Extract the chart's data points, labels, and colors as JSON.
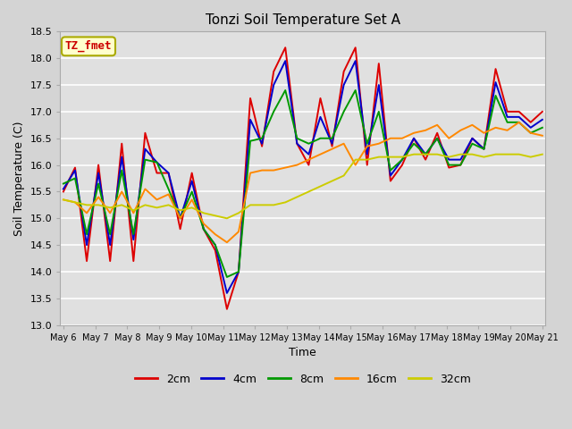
{
  "title": "Tonzi Soil Temperature Set A",
  "xlabel": "Time",
  "ylabel": "Soil Temperature (C)",
  "ylim": [
    13.0,
    18.5
  ],
  "fig_facecolor": "#d4d4d4",
  "ax_facecolor": "#e0e0e0",
  "annotation_text": "TZ_fmet",
  "annotation_color": "#cc0000",
  "annotation_bg": "#ffffcc",
  "annotation_border": "#aaaa00",
  "legend_labels": [
    "2cm",
    "4cm",
    "8cm",
    "16cm",
    "32cm"
  ],
  "legend_colors": [
    "#dd0000",
    "#0000cc",
    "#009900",
    "#ff8800",
    "#cccc00"
  ],
  "line_width": 1.4,
  "x_tick_labels": [
    "May 6",
    "May 7",
    "May 8",
    "May 9",
    "May 10",
    "May 11",
    "May 12",
    "May 13",
    "May 14",
    "May 15",
    "May 16",
    "May 17",
    "May 18",
    "May 19",
    "May 20",
    "May 21"
  ],
  "data_2cm": [
    15.5,
    15.95,
    14.2,
    16.0,
    14.2,
    16.4,
    14.2,
    16.6,
    15.85,
    15.85,
    14.8,
    15.85,
    14.8,
    14.4,
    13.3,
    14.0,
    17.25,
    16.35,
    17.75,
    18.2,
    16.4,
    16.0,
    17.25,
    16.35,
    17.75,
    18.2,
    16.0,
    17.9,
    15.7,
    16.0,
    16.5,
    16.1,
    16.6,
    15.95,
    16.0,
    16.5,
    16.3,
    17.8,
    17.0,
    17.0,
    16.8,
    17.0
  ],
  "data_4cm": [
    15.55,
    15.9,
    14.5,
    15.85,
    14.5,
    16.15,
    14.6,
    16.3,
    16.05,
    15.85,
    15.0,
    15.7,
    14.8,
    14.5,
    13.6,
    14.0,
    16.85,
    16.4,
    17.5,
    17.95,
    16.4,
    16.2,
    16.9,
    16.4,
    17.5,
    17.95,
    16.2,
    17.5,
    15.8,
    16.1,
    16.5,
    16.2,
    16.5,
    16.1,
    16.1,
    16.5,
    16.3,
    17.55,
    16.9,
    16.9,
    16.7,
    16.85
  ],
  "data_8cm": [
    15.65,
    15.75,
    14.7,
    15.65,
    14.7,
    15.9,
    14.7,
    16.1,
    16.05,
    15.55,
    15.0,
    15.5,
    14.8,
    14.5,
    13.9,
    14.0,
    16.45,
    16.5,
    17.0,
    17.4,
    16.5,
    16.4,
    16.5,
    16.5,
    17.0,
    17.4,
    16.4,
    17.0,
    15.9,
    16.1,
    16.4,
    16.2,
    16.5,
    16.0,
    16.0,
    16.4,
    16.3,
    17.3,
    16.8,
    16.8,
    16.6,
    16.7
  ],
  "data_16cm": [
    15.35,
    15.3,
    15.1,
    15.4,
    15.1,
    15.5,
    15.1,
    15.55,
    15.35,
    15.45,
    15.0,
    15.35,
    14.9,
    14.7,
    14.55,
    14.75,
    15.85,
    15.9,
    15.9,
    15.95,
    16.0,
    16.1,
    16.2,
    16.3,
    16.4,
    16.0,
    16.35,
    16.4,
    16.5,
    16.5,
    16.6,
    16.65,
    16.75,
    16.5,
    16.65,
    16.75,
    16.6,
    16.7,
    16.65,
    16.8,
    16.6,
    16.55
  ],
  "data_32cm": [
    15.35,
    15.3,
    15.25,
    15.25,
    15.2,
    15.25,
    15.15,
    15.25,
    15.2,
    15.25,
    15.15,
    15.2,
    15.1,
    15.05,
    15.0,
    15.1,
    15.25,
    15.25,
    15.25,
    15.3,
    15.4,
    15.5,
    15.6,
    15.7,
    15.8,
    16.1,
    16.1,
    16.15,
    16.15,
    16.15,
    16.2,
    16.2,
    16.2,
    16.15,
    16.2,
    16.2,
    16.15,
    16.2,
    16.2,
    16.2,
    16.15,
    16.2
  ]
}
